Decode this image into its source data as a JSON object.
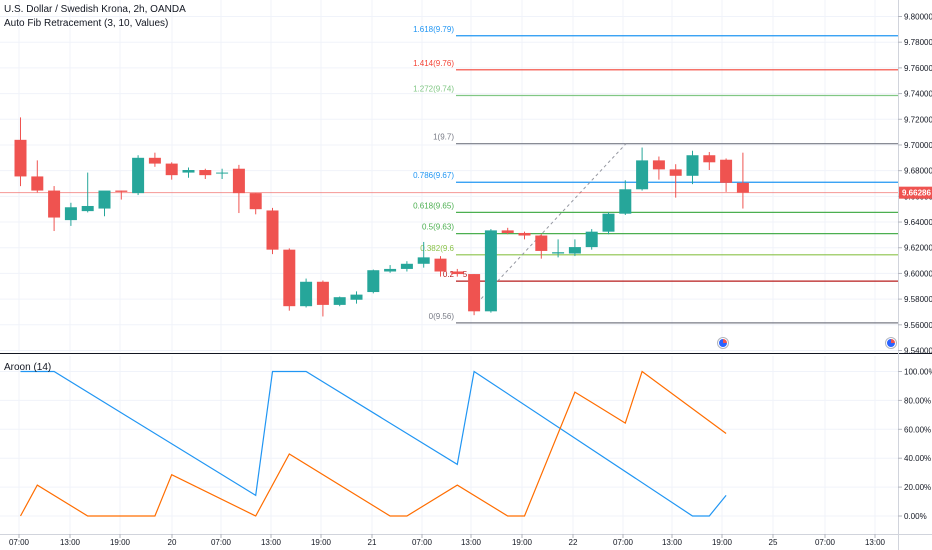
{
  "header": {
    "title": "U.S. Dollar / Swedish Krona, 2h, OANDA",
    "indicator": "Auto Fib Retracement (3, 10, Values)"
  },
  "chart_data": [
    {
      "type": "candlestick",
      "title": "U.S. Dollar / Swedish Krona, 2h, OANDA",
      "ylim": [
        9.54,
        9.81
      ],
      "y_ticks": [
        "9.80000",
        "9.78000",
        "9.76000",
        "9.74000",
        "9.72000",
        "9.70000",
        "9.68000",
        "9.66000",
        "9.64000",
        "9.62000",
        "9.60000",
        "9.58000",
        "9.56000",
        "9.54000"
      ],
      "y_tick_values": [
        9.8,
        9.78,
        9.76,
        9.74,
        9.72,
        9.7,
        9.68,
        9.66,
        9.64,
        9.62,
        9.6,
        9.58,
        9.56,
        9.54
      ],
      "x_ticks": [
        "07:00",
        "13:00",
        "19:00",
        "20",
        "07:00",
        "13:00",
        "19:00",
        "21",
        "07:00",
        "13:00",
        "19:00",
        "22",
        "07:00",
        "13:00",
        "19:00",
        "25",
        "07:00",
        "13:00"
      ],
      "current_price": "9.66286",
      "current_price_value": 9.66286,
      "candles": [
        {
          "o": 9.704,
          "h": 9.7215,
          "l": 9.668,
          "c": 9.6755
        },
        {
          "o": 9.6755,
          "h": 9.688,
          "l": 9.663,
          "c": 9.6645
        },
        {
          "o": 9.6645,
          "h": 9.668,
          "l": 9.633,
          "c": 9.6435
        },
        {
          "o": 9.6415,
          "h": 9.655,
          "l": 9.637,
          "c": 9.6515
        },
        {
          "o": 9.6485,
          "h": 9.6785,
          "l": 9.6475,
          "c": 9.6525
        },
        {
          "o": 9.6505,
          "h": 9.6635,
          "l": 9.6445,
          "c": 9.6645
        },
        {
          "o": 9.6645,
          "h": 9.6645,
          "l": 9.6575,
          "c": 9.6635
        },
        {
          "o": 9.6625,
          "h": 9.692,
          "l": 9.661,
          "c": 9.69
        },
        {
          "o": 9.69,
          "h": 9.694,
          "l": 9.683,
          "c": 9.6855
        },
        {
          "o": 9.6855,
          "h": 9.6865,
          "l": 9.673,
          "c": 9.6765
        },
        {
          "o": 9.6785,
          "h": 9.6825,
          "l": 9.6745,
          "c": 9.6805
        },
        {
          "o": 9.6805,
          "h": 9.6815,
          "l": 9.6735,
          "c": 9.6765
        },
        {
          "o": 9.6785,
          "h": 9.6815,
          "l": 9.6735,
          "c": 9.6785
        },
        {
          "o": 9.6815,
          "h": 9.6845,
          "l": 9.647,
          "c": 9.6625
        },
        {
          "o": 9.6625,
          "h": 9.6625,
          "l": 9.646,
          "c": 9.65
        },
        {
          "o": 9.649,
          "h": 9.651,
          "l": 9.615,
          "c": 9.6185
        },
        {
          "o": 9.6185,
          "h": 9.6195,
          "l": 9.571,
          "c": 9.5745
        },
        {
          "o": 9.5745,
          "h": 9.596,
          "l": 9.5735,
          "c": 9.5935
        },
        {
          "o": 9.5935,
          "h": 9.5945,
          "l": 9.5665,
          "c": 9.5755
        },
        {
          "o": 9.5755,
          "h": 9.582,
          "l": 9.5745,
          "c": 9.5815
        },
        {
          "o": 9.5795,
          "h": 9.586,
          "l": 9.5765,
          "c": 9.5835
        },
        {
          "o": 9.5855,
          "h": 9.603,
          "l": 9.5845,
          "c": 9.6025
        },
        {
          "o": 9.6015,
          "h": 9.6065,
          "l": 9.6005,
          "c": 9.6035
        },
        {
          "o": 9.6035,
          "h": 9.6095,
          "l": 9.6015,
          "c": 9.6075
        },
        {
          "o": 9.6075,
          "h": 9.6245,
          "l": 9.6045,
          "c": 9.6125
        },
        {
          "o": 9.6115,
          "h": 9.6135,
          "l": 9.5975,
          "c": 9.6015
        },
        {
          "o": 9.6015,
          "h": 9.6035,
          "l": 9.5975,
          "c": 9.5995
        },
        {
          "o": 9.5995,
          "h": 9.5995,
          "l": 9.5675,
          "c": 9.5705
        },
        {
          "o": 9.5705,
          "h": 9.6345,
          "l": 9.5695,
          "c": 9.6335
        },
        {
          "o": 9.6335,
          "h": 9.6355,
          "l": 9.6305,
          "c": 9.6315
        },
        {
          "o": 9.6315,
          "h": 9.6325,
          "l": 9.6265,
          "c": 9.6295
        },
        {
          "o": 9.6295,
          "h": 9.6305,
          "l": 9.6115,
          "c": 9.6175
        },
        {
          "o": 9.6155,
          "h": 9.6265,
          "l": 9.6125,
          "c": 9.6165
        },
        {
          "o": 9.6155,
          "h": 9.6265,
          "l": 9.6135,
          "c": 9.6205
        },
        {
          "o": 9.6205,
          "h": 9.6345,
          "l": 9.6185,
          "c": 9.6325
        },
        {
          "o": 9.6325,
          "h": 9.6475,
          "l": 9.6305,
          "c": 9.6465
        },
        {
          "o": 9.6465,
          "h": 9.6725,
          "l": 9.6455,
          "c": 9.6655
        },
        {
          "o": 9.6655,
          "h": 9.698,
          "l": 9.6645,
          "c": 9.688
        },
        {
          "o": 9.688,
          "h": 9.691,
          "l": 9.673,
          "c": 9.681
        },
        {
          "o": 9.681,
          "h": 9.685,
          "l": 9.659,
          "c": 9.676
        },
        {
          "o": 9.676,
          "h": 9.6955,
          "l": 9.6695,
          "c": 9.692
        },
        {
          "o": 9.692,
          "h": 9.6945,
          "l": 9.6805,
          "c": 9.6865
        },
        {
          "o": 9.6885,
          "h": 9.6895,
          "l": 9.6635,
          "c": 9.6705
        },
        {
          "o": 9.6705,
          "h": 9.694,
          "l": 9.6505,
          "c": 9.6629
        }
      ],
      "fib_levels": [
        {
          "label": "1.618(9.79)",
          "value": 9.785,
          "color": "#2196f3"
        },
        {
          "label": "1.414(9.76)",
          "value": 9.7585,
          "color": "#f44336"
        },
        {
          "label": "1.272(9.74)",
          "value": 9.7385,
          "color": "#81c784"
        },
        {
          "label": "1(9.7)",
          "value": 9.701,
          "color": "#787b86"
        },
        {
          "label": "0.786(9.67)",
          "value": 9.671,
          "color": "#2196f3"
        },
        {
          "label": "0.618(9.65)",
          "value": 9.6475,
          "color": "#4caf50"
        },
        {
          "label": "0.5(9.63)",
          "value": 9.631,
          "color": "#4caf50"
        },
        {
          "label": "0.382(9.6",
          "value": 9.6145,
          "color": "#8bc34a"
        },
        {
          "label": "0.2",
          "value": 9.594,
          "color": "#b71c1c"
        },
        {
          "label": "0(9.56)",
          "value": 9.5615,
          "color": "#787b86"
        }
      ],
      "fib_level_tail": "5"
    },
    {
      "type": "line",
      "title": "Aroon (14)",
      "ylim": [
        -10,
        110
      ],
      "y_ticks": [
        "100.00%",
        "80.00%",
        "60.00%",
        "40.00%",
        "20.00%",
        "0.00%"
      ],
      "y_tick_values": [
        100,
        80,
        60,
        40,
        20,
        0
      ],
      "series": [
        {
          "name": "up",
          "color": "#2196f3",
          "x": [
            0,
            2,
            14,
            15,
            17,
            26,
            27,
            40,
            41,
            42
          ],
          "y": [
            100,
            100,
            14.3,
            100,
            100,
            35.7,
            100,
            0,
            0,
            14.3
          ]
        },
        {
          "name": "down",
          "color": "#ff6d00",
          "x": [
            0,
            1,
            4,
            8,
            9,
            14,
            16,
            22,
            23,
            26,
            29,
            30,
            33,
            34,
            36,
            37,
            42
          ],
          "y": [
            0,
            21.4,
            0,
            0,
            28.6,
            0,
            42.9,
            0,
            0,
            21.4,
            0,
            0,
            85.7,
            78.6,
            64.3,
            100,
            57.1
          ]
        }
      ]
    }
  ]
}
